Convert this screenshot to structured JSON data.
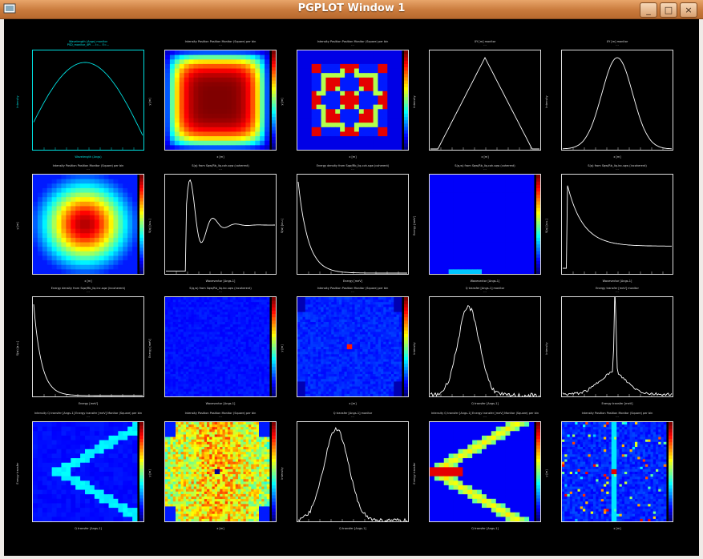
{
  "window": {
    "title": "PGPLOT Window 1",
    "buttons": {
      "minimize": "_",
      "maximize": "□",
      "close": "×"
    }
  },
  "colors": {
    "background": "#000000",
    "axes": "#dddddd",
    "cyan": "#00e0e0",
    "titlebar": "#c97a3c"
  },
  "panels": [
    {
      "id": "r1c1",
      "kind": "line-cyan",
      "title": "Wavelength (Angs) monitor",
      "title2": "PSD_monitor_4PI … I=… E=…",
      "xlabel": "Wavelength (Angs)",
      "ylabel": "Intensity"
    },
    {
      "id": "r1c2",
      "kind": "heatmap",
      "title": "Intensity Position Position Monitor (Square) per bin",
      "title2": "…",
      "xlabel": "x [m]",
      "ylabel": "y [m]"
    },
    {
      "id": "r1c3",
      "kind": "heatmap",
      "title": "Intensity Position Position Monitor (Square) per bin",
      "title2": "…",
      "xlabel": "x [m]",
      "ylabel": "y [m]"
    },
    {
      "id": "r1c4",
      "kind": "line",
      "title": "XY [m] monitor",
      "title2": "…",
      "xlabel": "x [m]",
      "ylabel": "Intensity"
    },
    {
      "id": "r1c5",
      "kind": "line",
      "title": "XY [m] monitor",
      "title2": "…",
      "xlabel": "x [m]",
      "ylabel": "Intensity"
    },
    {
      "id": "r2c1",
      "kind": "heatmap",
      "title": "Intensity Position Position Monitor (Square) per bin",
      "title2": "…",
      "xlabel": "x [m]",
      "ylabel": "y [m]"
    },
    {
      "id": "r2c2",
      "kind": "line",
      "title": "S(q) from Sqw/Rb_liq.coh.sqw (coherent)",
      "title2": "…",
      "xlabel": "Wavevector [Angs-1]",
      "ylabel": "S(q) [a.u.]"
    },
    {
      "id": "r2c3",
      "kind": "line",
      "title": "Energy density from Sqw/Rb_liq.coh.sqw (coherent)",
      "title2": "…",
      "xlabel": "Energy [meV]",
      "ylabel": "S(w) [a.u.]"
    },
    {
      "id": "r2c4",
      "kind": "heatmap",
      "title": "S(q,w) from Sqw/Rb_liq.coh.sqw (coherent)",
      "title2": "…",
      "xlabel": "Wavevector [Angs-1]",
      "ylabel": "Energy [meV]"
    },
    {
      "id": "r2c5",
      "kind": "line",
      "title": "S(q) from Sqw/Rb_liq.inc.sqw (incoherent)",
      "title2": "…",
      "xlabel": "Wavevector [Angs-1]",
      "ylabel": "S(q) [a.u.]"
    },
    {
      "id": "r3c1",
      "kind": "line",
      "title": "Energy density from Sqw/Rb_liq.inc.sqw (incoherent)",
      "title2": "…",
      "xlabel": "Energy [meV]",
      "ylabel": "S(w) [a.u.]"
    },
    {
      "id": "r3c2",
      "kind": "heatmap",
      "title": "S(q,w) from Sqw/Rb_liq.inc.sqw (incoherent)",
      "title2": "…",
      "xlabel": "Wavevector [Angs-1]",
      "ylabel": "Energy [meV]"
    },
    {
      "id": "r3c3",
      "kind": "heatmap",
      "title": "Intensity Position Position Monitor (Square) per bin",
      "title2": "…",
      "xlabel": "x [m]",
      "ylabel": "y [m]"
    },
    {
      "id": "r3c4",
      "kind": "line",
      "title": "Q transfer [Angs-1] monitor",
      "title2": "…",
      "xlabel": "Q transfer [Angs-1]",
      "ylabel": "Intensity"
    },
    {
      "id": "r3c5",
      "kind": "line",
      "title": "Energy transfer [meV] monitor",
      "title2": "…",
      "xlabel": "Energy transfer [meV]",
      "ylabel": "Intensity"
    },
    {
      "id": "r4c1",
      "kind": "heatmap",
      "title": "Intensity Q transfer [Angs-1] Energy transfer [meV] Monitor (Square) per bin",
      "title2": "…",
      "xlabel": "Q transfer [Angs-1]",
      "ylabel": "Energy transfer"
    },
    {
      "id": "r4c2",
      "kind": "heatmap",
      "title": "Intensity Position Position Monitor (Square) per bin",
      "title2": "…",
      "xlabel": "x [m]",
      "ylabel": "y [m]"
    },
    {
      "id": "r4c3",
      "kind": "line",
      "title": "Q transfer [Angs-1] monitor",
      "title2": "…",
      "xlabel": "Q transfer [Angs-1]",
      "ylabel": "Intensity"
    },
    {
      "id": "r4c4",
      "kind": "heatmap",
      "title": "Intensity Q transfer [Angs-1] Energy transfer [meV] Monitor (Square) per bin",
      "title2": "…",
      "xlabel": "Q transfer [Angs-1]",
      "ylabel": "Energy transfer"
    },
    {
      "id": "r4c5",
      "kind": "heatmap",
      "title": "Intensity Position Position Monitor (Square) per bin",
      "title2": "…",
      "xlabel": "x [m]",
      "ylabel": "y [m]"
    }
  ]
}
